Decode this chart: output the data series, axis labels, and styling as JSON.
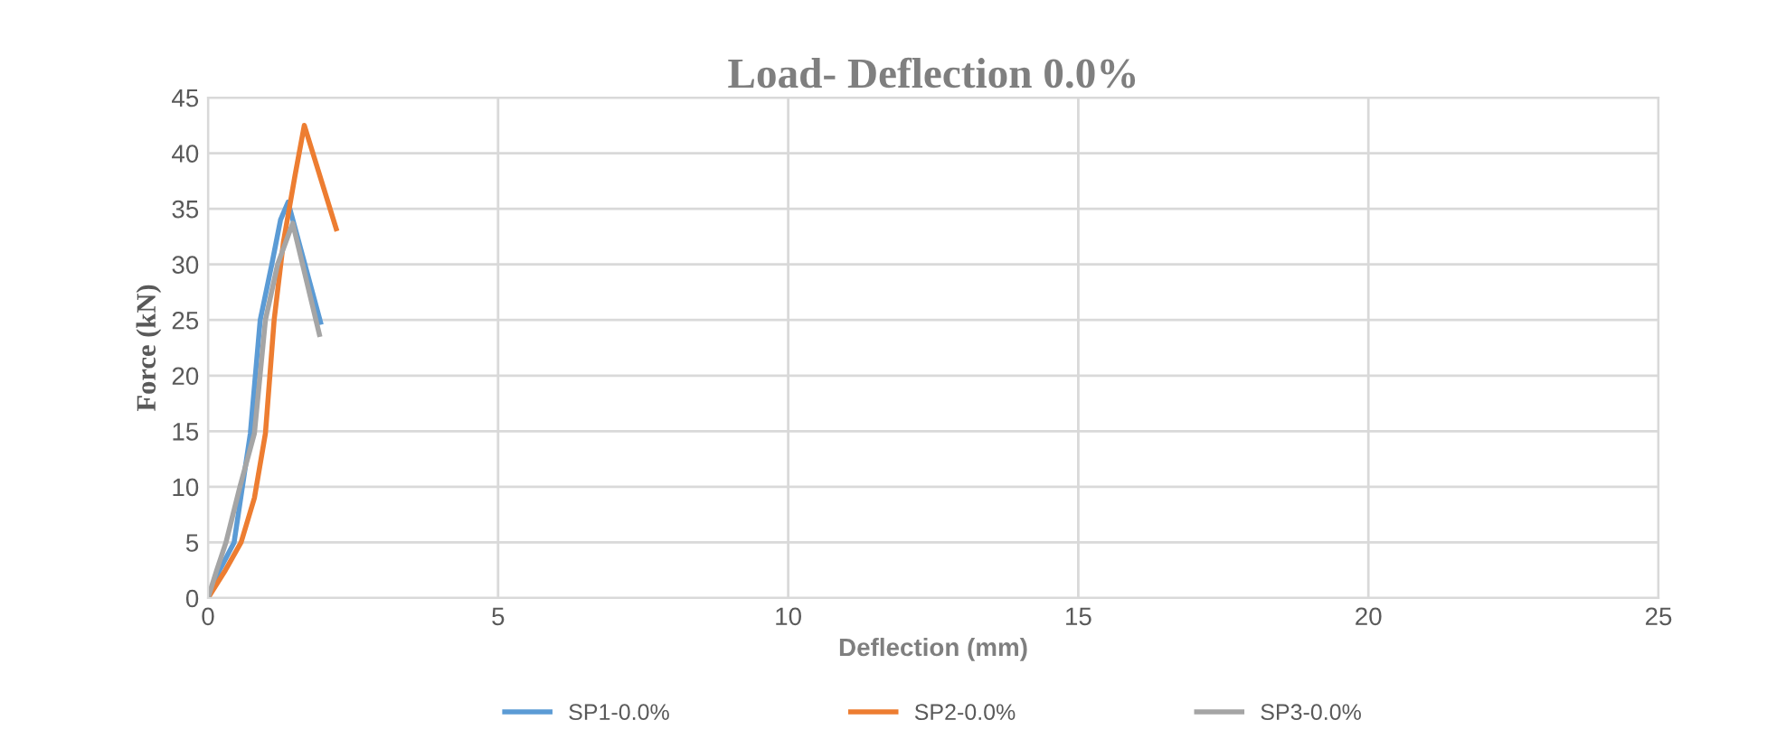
{
  "chart_data": {
    "type": "line",
    "title": "Load- Deflection 0.0%",
    "xlabel": "Deflection (mm)",
    "ylabel": "Force (kN)",
    "xlim": [
      0,
      25
    ],
    "xticks": [
      0,
      5,
      10,
      15,
      20,
      25
    ],
    "ylim": [
      0,
      45
    ],
    "yticks": [
      0,
      5,
      10,
      15,
      20,
      25,
      30,
      35,
      40,
      45
    ],
    "grid": true,
    "legend": "bottom",
    "marker": "none",
    "series": [
      {
        "name": "SP1-0.0%",
        "color": "#5b9bd5",
        "x": [
          0,
          0.2,
          0.45,
          0.73,
          0.9,
          1.1,
          1.25,
          1.38,
          1.94
        ],
        "values": [
          0,
          2.5,
          5,
          14.8,
          25,
          30,
          34,
          35.6,
          24.8
        ]
      },
      {
        "name": "SP2-0.0%",
        "color": "#ed7d31",
        "x": [
          0,
          0.3,
          0.57,
          0.8,
          0.99,
          1.14,
          1.3,
          1.5,
          1.66,
          2.21
        ],
        "values": [
          0,
          2.5,
          5,
          9,
          14.8,
          25,
          32,
          38,
          42.5,
          33.2
        ]
      },
      {
        "name": "SP3-0.0%",
        "color": "#a5a5a5",
        "x": [
          0,
          0.15,
          0.31,
          0.55,
          0.8,
          0.99,
          1.2,
          1.46,
          1.92
        ],
        "values": [
          0,
          2.5,
          5,
          10,
          14.8,
          25,
          30,
          33.7,
          23.7
        ]
      }
    ]
  }
}
